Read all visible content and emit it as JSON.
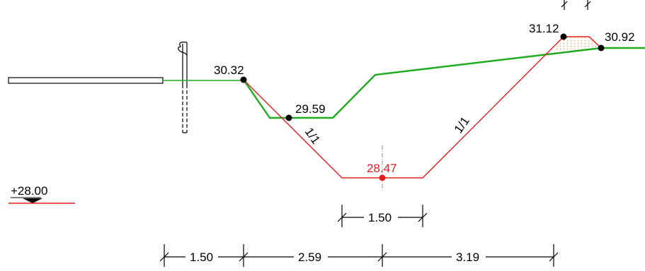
{
  "colors": {
    "ground": "#1faa1f",
    "excavation": "#e01e1e",
    "ink": "#000000",
    "fill_hatch": "#f2a25a"
  },
  "elevations": {
    "left_top": "30.32",
    "inner_berm": "29.59",
    "bottom": "28.47",
    "right_top": "31.12",
    "right_ground": "30.92"
  },
  "slopes": {
    "left": "1/1",
    "right": "1/1"
  },
  "datum": {
    "label": "+28.00"
  },
  "dimensions": {
    "bottom_width": "1.50",
    "seg_1": "1.50",
    "seg_2": "2.59",
    "seg_3": "3.19"
  }
}
